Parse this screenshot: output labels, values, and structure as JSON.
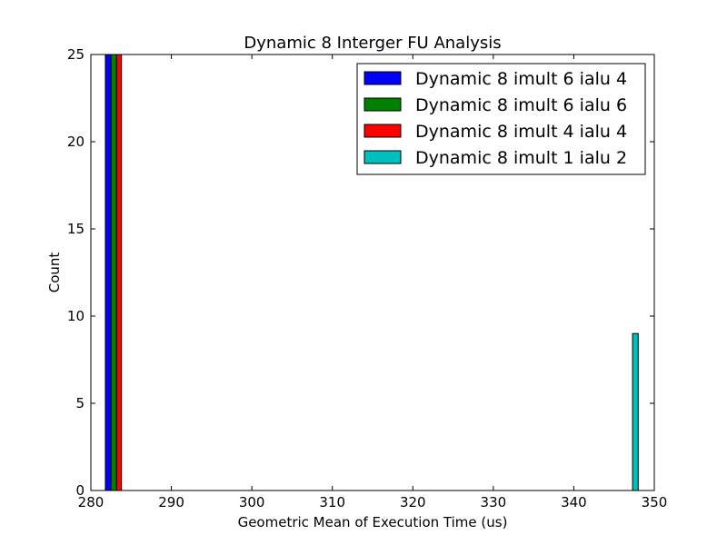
{
  "chart_data": {
    "type": "bar",
    "title": "Dynamic 8 Interger FU Analysis",
    "xlabel": "Geometric Mean of Execution Time (us)",
    "ylabel": "Count",
    "xlim": [
      280,
      350
    ],
    "ylim": [
      0,
      25
    ],
    "xticks": [
      "280",
      "290",
      "300",
      "310",
      "320",
      "330",
      "340",
      "350"
    ],
    "yticks": [
      "0",
      "5",
      "10",
      "15",
      "20",
      "25"
    ],
    "legend_position": "top-right",
    "grid": false,
    "series": [
      {
        "name": "Dynamic 8 imult 6 ialu 4",
        "color": "#0000ff",
        "bars": [
          {
            "x0": 281.8,
            "x1": 282.5,
            "count": 25
          }
        ]
      },
      {
        "name": "Dynamic 8 imult 6 ialu 6",
        "color": "#008000",
        "bars": [
          {
            "x0": 282.5,
            "x1": 283.2,
            "count": 25
          }
        ]
      },
      {
        "name": "Dynamic 8 imult 4 ialu 4",
        "color": "#ff0000",
        "bars": [
          {
            "x0": 283.2,
            "x1": 283.8,
            "count": 25
          }
        ]
      },
      {
        "name": "Dynamic 8 imult 1 ialu 2",
        "color": "#00bfbf",
        "bars": [
          {
            "x0": 347.3,
            "x1": 348.0,
            "count": 9
          }
        ]
      }
    ]
  }
}
